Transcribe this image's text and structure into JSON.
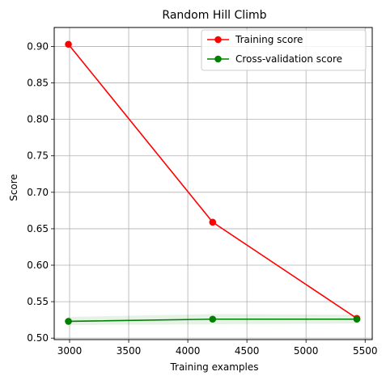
{
  "chart_data": {
    "type": "line",
    "title": "Random Hill Climb",
    "xlabel": "Training examples",
    "ylabel": "Score",
    "xlim": [
      2870,
      5560
    ],
    "ylim": [
      0.498,
      0.926
    ],
    "xticks": [
      3000,
      3500,
      4000,
      4500,
      5000,
      5500
    ],
    "yticks": [
      0.5,
      0.55,
      0.6,
      0.65,
      0.7,
      0.75,
      0.8,
      0.85,
      0.9
    ],
    "xtick_labels": [
      "3000",
      "3500",
      "4000",
      "4500",
      "5000",
      "5500"
    ],
    "ytick_labels": [
      "0.50",
      "0.55",
      "0.60",
      "0.65",
      "0.70",
      "0.75",
      "0.80",
      "0.85",
      "0.90"
    ],
    "grid": true,
    "legend_position": "top-right",
    "x": [
      2990,
      4210,
      5430
    ],
    "series": [
      {
        "name": "Training score",
        "color": "#ff0000",
        "values": [
          0.903,
          0.659,
          0.527
        ]
      },
      {
        "name": "Cross-validation score",
        "color": "#008000",
        "values": [
          0.523,
          0.526,
          0.526
        ],
        "band_lower": [
          0.518,
          0.519,
          0.52
        ],
        "band_upper": [
          0.529,
          0.533,
          0.532
        ],
        "band_color": "#008000"
      }
    ]
  }
}
